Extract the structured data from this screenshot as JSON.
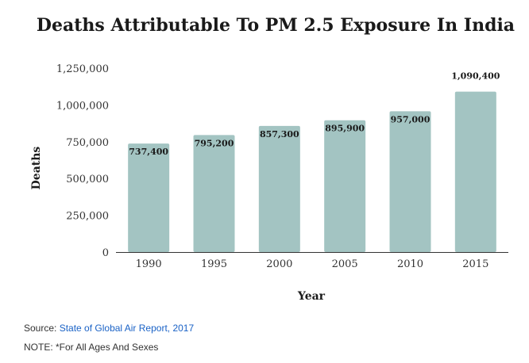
{
  "chart_data": {
    "type": "bar",
    "title": "Deaths Attributable To PM 2.5 Exposure In India",
    "xlabel": "Year",
    "ylabel": "Deaths",
    "categories": [
      "1990",
      "1995",
      "2000",
      "2005",
      "2010",
      "2015"
    ],
    "values": [
      737400,
      795200,
      857300,
      895900,
      957000,
      1090400
    ],
    "data_labels": [
      "737,400",
      "795,200",
      "857,300",
      "895,900",
      "957,000",
      "1,090,400"
    ],
    "ylim": [
      0,
      1250000
    ],
    "yticks": [
      0,
      250000,
      500000,
      750000,
      1000000,
      1250000
    ],
    "ytick_labels": [
      "0",
      "250,000",
      "500,000",
      "750,000",
      "1,000,000",
      "1,250,000"
    ],
    "grid": false,
    "legend": "none",
    "bar_color": "#a3c4c2"
  },
  "footer": {
    "source_prefix": "Source: ",
    "source_link": "State of Global Air Report, 2017",
    "note": "NOTE: *For All Ages And Sexes"
  },
  "colors": {
    "link": "#1a62c6",
    "text": "#333333"
  }
}
